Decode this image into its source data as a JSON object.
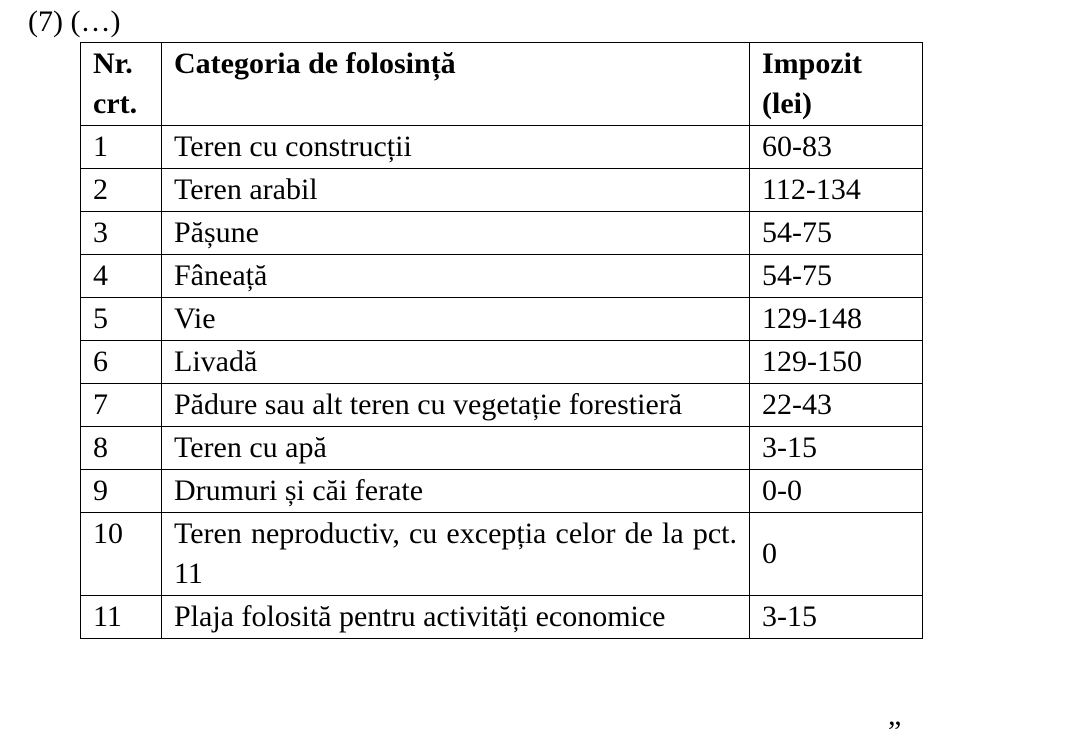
{
  "label": "(7) (…)",
  "table": {
    "header": [
      "Nr. crt.",
      "Categoria de folosință",
      "Impozit (lei)"
    ],
    "rows": [
      [
        "1",
        "Teren cu construcții",
        "60-83"
      ],
      [
        "2",
        "Teren arabil",
        "112-134"
      ],
      [
        "3",
        "Pășune",
        "54-75"
      ],
      [
        "4",
        "Fâneață",
        "54-75"
      ],
      [
        "5",
        "Vie",
        "129-148"
      ],
      [
        "6",
        "Livadă",
        "129-150"
      ],
      [
        "7",
        "Pădure sau alt teren cu vegetație forestieră",
        "22-43"
      ],
      [
        "8",
        "Teren cu apă",
        "3-15"
      ],
      [
        "9",
        "Drumuri și căi ferate",
        "0-0"
      ],
      [
        "10",
        "Teren neproductiv, cu excepția celor de la pct. 11",
        "0"
      ],
      [
        "11",
        "Plaja folosită pentru activități economice",
        "3-15"
      ]
    ]
  },
  "closing": "”"
}
